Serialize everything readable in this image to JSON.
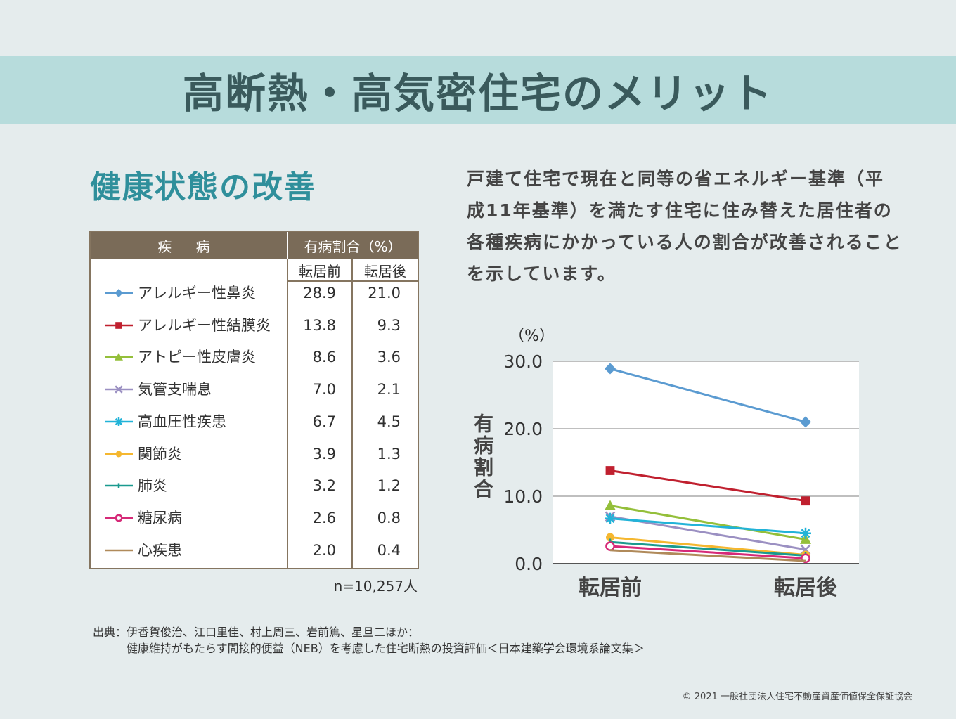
{
  "banner": {
    "title": "高断熱・高気密住宅のメリット"
  },
  "section_title": "健康状態の改善",
  "description": "戸建て住宅で現在と同等の省エネルギー基準（平成11年基準）を満たす住宅に住み替えた居住者の各種疾病にかかっている人の割合が改善されることを示しています。",
  "table": {
    "header_disease": "疾 病",
    "header_rate": "有病割合（%）",
    "sub_before": "転居前",
    "sub_after": "転居後",
    "n_note": "n=10,257人"
  },
  "chart_data": {
    "type": "line",
    "title": "",
    "unit_label": "（%）",
    "ylabel": "有病割合",
    "categories": [
      "転居前",
      "転居後"
    ],
    "ylim": [
      0,
      30
    ],
    "yticks": [
      "0.0",
      "10.0",
      "20.0",
      "30.0"
    ],
    "grid": true,
    "series": [
      {
        "name": "アレルギー性鼻炎",
        "values": [
          28.9,
          21.0
        ],
        "color": "#5b9bd1",
        "marker": "diamond",
        "before_label": "28.9",
        "after_label": "21.0"
      },
      {
        "name": "アレルギー性結膜炎",
        "values": [
          13.8,
          9.3
        ],
        "color": "#c0202f",
        "marker": "square",
        "before_label": "13.8",
        "after_label": "9.3"
      },
      {
        "name": "アトピー性皮膚炎",
        "values": [
          8.6,
          3.6
        ],
        "color": "#94bf3a",
        "marker": "triangle",
        "before_label": "8.6",
        "after_label": "3.6"
      },
      {
        "name": "気管支喘息",
        "values": [
          7.0,
          2.1
        ],
        "color": "#9b90c2",
        "marker": "x",
        "before_label": "7.0",
        "after_label": "2.1"
      },
      {
        "name": "高血圧性疾患",
        "values": [
          6.7,
          4.5
        ],
        "color": "#22b3d8",
        "marker": "asterisk",
        "before_label": "6.7",
        "after_label": "4.5"
      },
      {
        "name": "関節炎",
        "values": [
          3.9,
          1.3
        ],
        "color": "#f5b72f",
        "marker": "circle",
        "before_label": "3.9",
        "after_label": "1.3"
      },
      {
        "name": "肺炎",
        "values": [
          3.2,
          1.2
        ],
        "color": "#1a9a8f",
        "marker": "plus",
        "before_label": "3.2",
        "after_label": "1.2"
      },
      {
        "name": "糖尿病",
        "values": [
          2.6,
          0.8
        ],
        "color": "#d62a78",
        "marker": "open-circle",
        "before_label": "2.6",
        "after_label": "0.8"
      },
      {
        "name": "心疾患",
        "values": [
          2.0,
          0.4
        ],
        "color": "#b08a5a",
        "marker": "none",
        "before_label": "2.0",
        "after_label": "0.4"
      }
    ]
  },
  "source": {
    "line1": "出典：伊香賀俊治、江口里佳、村上周三、岩前篤、星旦二ほか：",
    "line2": "健康維持がもたらす間接的便益（NEB）を考慮した住宅断熱の投資評価＜日本建築学会環境系論文集＞"
  },
  "copyright": "© 2021 一般社団法人住宅不動産資産価値保全保証協会"
}
